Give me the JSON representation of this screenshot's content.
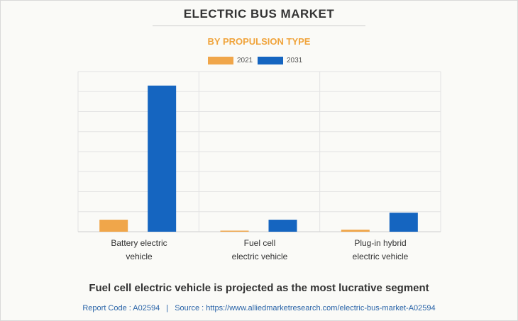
{
  "header": {
    "title": "ELECTRIC BUS MARKET",
    "subtitle": "BY PROPULSION TYPE"
  },
  "caption": "Fuel cell electric vehicle is projected as the most lucrative segment",
  "footer": {
    "report_code_label": "Report Code : A02594",
    "separator": "|",
    "source": "Source : https://www.alliedmarketresearch.com/electric-bus-market-A02594"
  },
  "colors": {
    "series_2021": "#f0a64a",
    "series_2031": "#1565c0",
    "subtitle": "#f0a43c",
    "footer_link": "#2a64a8"
  },
  "chart_data": {
    "type": "bar",
    "categories": [
      "Battery electric vehicle",
      "Fuel cell electric vehicle",
      "Plug-in hybrid electric vehicle"
    ],
    "category_label_lines": [
      [
        "Battery electric",
        "vehicle"
      ],
      [
        "Fuel cell",
        "electric vehicle"
      ],
      [
        "Plug-in hybrid",
        "electric vehicle"
      ]
    ],
    "series": [
      {
        "name": "2021",
        "values": [
          6,
          0.3,
          1
        ]
      },
      {
        "name": "2031",
        "values": [
          73,
          6,
          9.5
        ]
      }
    ],
    "ylim": [
      0,
      80
    ],
    "gridlines": 8,
    "grid": true,
    "legend_position": "top-center",
    "y_tick_labels_shown": false
  }
}
